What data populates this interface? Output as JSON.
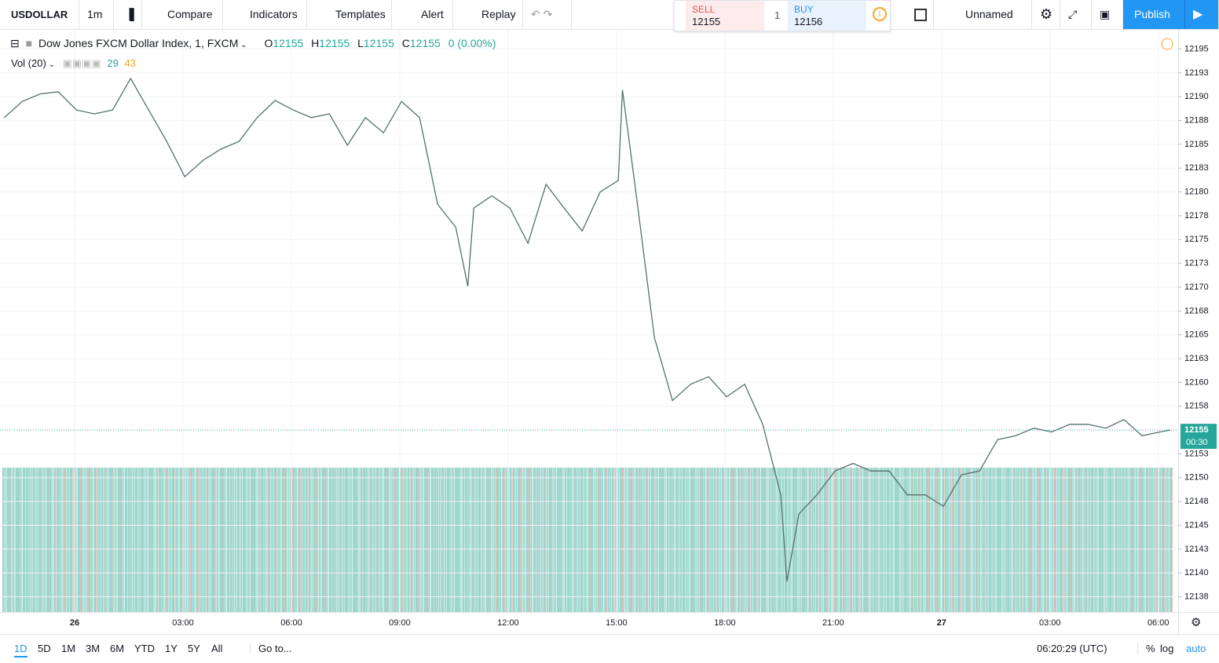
{
  "toolbar": {
    "symbol": "USDOLLAR",
    "interval": "1m",
    "compare": "Compare",
    "indicators": "Indicators",
    "templates": "Templates",
    "alert": "Alert",
    "replay": "Replay",
    "layout": "Unnamed",
    "publish": "Publish"
  },
  "trade": {
    "sell_label": "SELL",
    "sell_price": "12155",
    "quantity": "1",
    "buy_label": "BUY",
    "buy_price": "12156"
  },
  "legend": {
    "name": "Dow Jones FXCM Dollar Index, 1, FXCM",
    "open_label": "O",
    "open": "12155",
    "high_label": "H",
    "high": "12155",
    "low_label": "L",
    "low": "12155",
    "close_label": "C",
    "close": "12155",
    "change": "0 (0.00%)"
  },
  "volume_legend": {
    "label": "Vol (20)",
    "value1": "29",
    "value2": "43"
  },
  "chart_data": {
    "type": "line",
    "color": "#55706e",
    "grid": true,
    "x": [
      -117,
      -87,
      -57,
      -27,
      3,
      33,
      63,
      93,
      123,
      153,
      183,
      213,
      243,
      273,
      303,
      333,
      363,
      393,
      423,
      453,
      483,
      513,
      543,
      573,
      603,
      633,
      653,
      663,
      693,
      723,
      753,
      783,
      813,
      843,
      873,
      903,
      910,
      933,
      963,
      993,
      1023,
      1053,
      1083,
      1113,
      1143,
      1173,
      1183,
      1203,
      1233,
      1263,
      1293,
      1323,
      1353,
      1383,
      1413,
      1443,
      1473,
      1503,
      1533,
      1563,
      1593,
      1623,
      1653,
      1683,
      1713,
      1743,
      1773,
      1803,
      1820
    ],
    "values": [
      12187.8,
      12189.5,
      12190.3,
      12190.5,
      12188.6,
      12188.2,
      12188.6,
      12191.9,
      12188.6,
      12185.3,
      12181.6,
      12183.3,
      12184.5,
      12185.3,
      12187.8,
      12189.6,
      12188.6,
      12187.8,
      12188.2,
      12184.9,
      12187.8,
      12186.2,
      12189.5,
      12187.8,
      12178.7,
      12176.3,
      12170.1,
      12178.3,
      12179.6,
      12178.3,
      12174.6,
      12180.8,
      12178.3,
      12175.9,
      12180.0,
      12181.2,
      12190.7,
      12179.6,
      12164.7,
      12158.1,
      12159.8,
      12160.6,
      12158.5,
      12159.8,
      12155.6,
      12148.2,
      12139.1,
      12146.2,
      12148.2,
      12150.7,
      12151.5,
      12150.7,
      12150.7,
      12148.2,
      12148.2,
      12147.0,
      12150.3,
      12150.7,
      12154.0,
      12154.4,
      12155.2,
      12154.8,
      12155.6,
      12155.6,
      12155.2,
      12156.1,
      12154.4,
      12154.8,
      12155
    ],
    "xlim": [
      -124,
      1833
    ],
    "xticks": [
      {
        "value": 0,
        "label": "26"
      },
      {
        "value": 180,
        "label": "03:00"
      },
      {
        "value": 360,
        "label": "06:00"
      },
      {
        "value": 540,
        "label": "09:00"
      },
      {
        "value": 720,
        "label": "12:00"
      },
      {
        "value": 900,
        "label": "15:00"
      },
      {
        "value": 1080,
        "label": "18:00"
      },
      {
        "value": 1260,
        "label": "21:00"
      },
      {
        "value": 1440,
        "label": "27"
      },
      {
        "value": 1620,
        "label": "03:00"
      },
      {
        "value": 1800,
        "label": "06:00"
      }
    ],
    "ylim": [
      12135.9,
      12197.1
    ],
    "yticks": [
      12195,
      {
        "value": 12192.5,
        "label": "12193"
      },
      12190,
      {
        "value": 12187.5,
        "label": "12188"
      },
      12185,
      {
        "value": 12182.5,
        "label": "12183"
      },
      12180,
      {
        "value": 12177.5,
        "label": "12178"
      },
      12175,
      {
        "value": 12172.5,
        "label": "12173"
      },
      12170,
      {
        "value": 12167.5,
        "label": "12168"
      },
      12165,
      {
        "value": 12162.5,
        "label": "12163"
      },
      12160,
      {
        "value": 12157.5,
        "label": "12158"
      },
      {
        "value": 12152.5,
        "label": "12153"
      },
      12150,
      {
        "value": 12147.5,
        "label": "12148"
      },
      12145,
      {
        "value": 12142.5,
        "label": "12143"
      },
      12140,
      {
        "value": 12137.5,
        "label": "12138"
      }
    ],
    "last_price": 12155,
    "countdown": "00:30"
  },
  "bottom": {
    "ranges": [
      "1D",
      "5D",
      "1M",
      "3M",
      "6M",
      "YTD",
      "1Y",
      "5Y",
      "All"
    ],
    "goto": "Go to...",
    "clock": "06:20:29 (UTC)",
    "percent": "%",
    "log": "log",
    "auto": "auto"
  }
}
